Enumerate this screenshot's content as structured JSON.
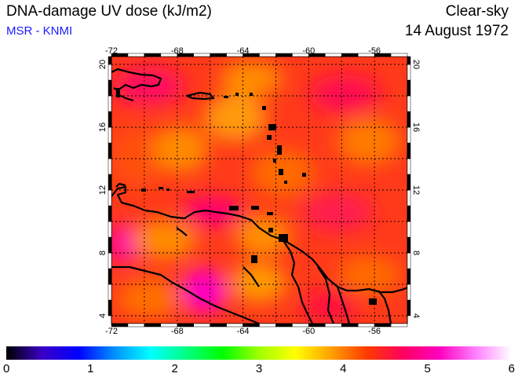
{
  "header": {
    "title": "DNA-damage UV dose (kJ/m2)",
    "source": "MSR - KNMI",
    "sky": "Clear-sky",
    "date": "14 August 1972"
  },
  "map": {
    "lon_range": [
      -72,
      -54
    ],
    "lat_range": [
      3.5,
      20.5
    ],
    "lon_ticks": [
      -72,
      -68,
      -64,
      -60,
      -56
    ],
    "lat_ticks": [
      20,
      16,
      12,
      8,
      4
    ],
    "lon_tick_labels": [
      "-72",
      "-68",
      "-64",
      "-60",
      "-56"
    ],
    "lat_tick_labels": [
      "20",
      "16",
      "12",
      "8",
      "4"
    ],
    "background_color": "#ff3a1a",
    "coastline_color": "#000000"
  },
  "colorbar": {
    "min": 0,
    "max": 6,
    "labels": [
      "0",
      "1",
      "2",
      "3",
      "4",
      "5",
      "6"
    ],
    "colors": [
      "#000000",
      "#3a00c8",
      "#0000ff",
      "#0090ff",
      "#00ffff",
      "#00ff80",
      "#00ff00",
      "#a0ff00",
      "#ffff00",
      "#ffa000",
      "#ff3a00",
      "#ff0060",
      "#ff00c0",
      "#ff80ff",
      "#ffffff"
    ]
  }
}
